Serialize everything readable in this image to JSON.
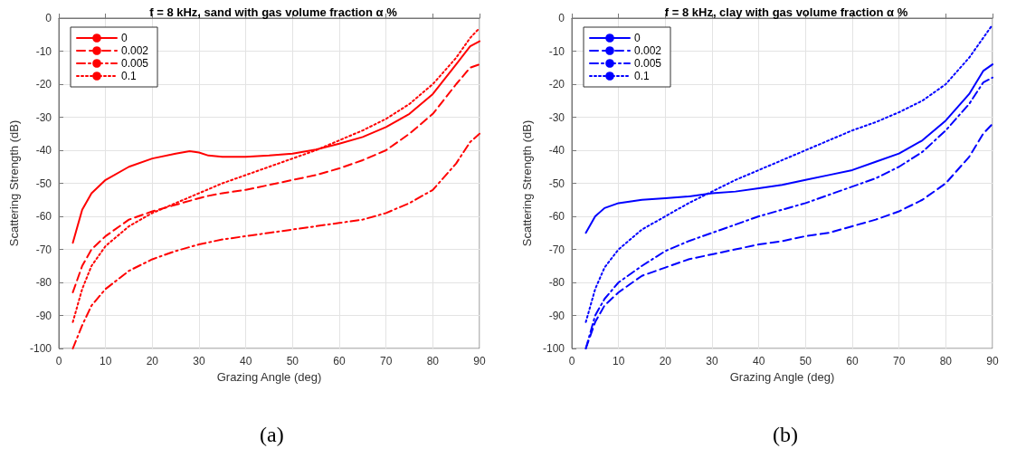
{
  "chart_data": [
    {
      "type": "line",
      "title": "f = 8 kHz, sand with gas volume fraction α %",
      "xlabel": "Grazing Angle (deg)",
      "ylabel": "Scattering Strength (dB)",
      "annotations": [
        "(a)"
      ],
      "x": [
        3,
        5,
        7,
        10,
        15,
        20,
        25,
        28,
        30,
        32,
        35,
        40,
        45,
        50,
        55,
        60,
        65,
        70,
        75,
        80,
        85,
        88,
        90
      ],
      "series": [
        {
          "name": "0",
          "color": "#ff0000",
          "line_style": "solid",
          "values": [
            -68,
            -58,
            -53,
            -49,
            -45,
            -42.5,
            -41,
            -40.3,
            -40.7,
            -41.6,
            -42,
            -42,
            -41.6,
            -41,
            -39.8,
            -38,
            -36,
            -33,
            -29,
            -23,
            -14,
            -8.5,
            -7
          ]
        },
        {
          "name": "0.002",
          "color": "#ff0000",
          "line_style": "dashed",
          "values": [
            -83,
            -75,
            -70,
            -66,
            -61,
            -58.5,
            -56.5,
            -55.3,
            -54.5,
            -53.8,
            -53,
            -52,
            -50.5,
            -49,
            -47.5,
            -45.5,
            -43,
            -40,
            -35,
            -29,
            -20,
            -15,
            -14
          ]
        },
        {
          "name": "0.005",
          "color": "#ff0000",
          "line_style": "dashdot",
          "values": [
            -100,
            -93,
            -87,
            -82,
            -76.5,
            -73,
            -70.5,
            -69.3,
            -68.5,
            -67.9,
            -67,
            -66,
            -65,
            -64,
            -63,
            -62,
            -61,
            -59,
            -56,
            -52,
            -44,
            -37.5,
            -35
          ]
        },
        {
          "name": "0.1",
          "color": "#ff0000",
          "line_style": "dotted",
          "values": [
            -92,
            -82,
            -75,
            -69,
            -63,
            -59,
            -56,
            -54.2,
            -53,
            -51.8,
            -50,
            -47.5,
            -45,
            -42.5,
            -40,
            -37,
            -34,
            -30.5,
            -26,
            -20,
            -12,
            -6,
            -3
          ]
        }
      ],
      "xlim": [
        0,
        90
      ],
      "xticks": [
        0,
        10,
        20,
        30,
        40,
        50,
        60,
        70,
        80,
        90
      ],
      "ylim": [
        -100,
        0
      ],
      "yticks": [
        -100,
        -90,
        -80,
        -70,
        -60,
        -50,
        -40,
        -30,
        -20,
        -10,
        0
      ],
      "grid": true,
      "legend": "top left",
      "marker": "none"
    },
    {
      "type": "line",
      "title": "f = 8 kHz, clay with gas volume fraction α %",
      "xlabel": "Grazing Angle (deg)",
      "ylabel": "Scattering Strength (dB)",
      "annotations": [
        "(b)"
      ],
      "x": [
        3,
        5,
        7,
        10,
        15,
        20,
        25,
        30,
        35,
        40,
        45,
        50,
        55,
        60,
        65,
        70,
        75,
        80,
        85,
        88,
        90
      ],
      "series": [
        {
          "name": "0",
          "color": "#0000ff",
          "line_style": "solid",
          "values": [
            -65,
            -60,
            -57.5,
            -56,
            -55,
            -54.5,
            -54,
            -53,
            -52.5,
            -51.5,
            -50.5,
            -49,
            -47.5,
            -46,
            -43.5,
            -41,
            -37,
            -31,
            -23,
            -16,
            -14
          ]
        },
        {
          "name": "0.002",
          "color": "#0000ff",
          "line_style": "dashed",
          "values": [
            -100,
            -92,
            -87,
            -83,
            -78,
            -75.5,
            -73,
            -71.5,
            -70,
            -68.5,
            -67.5,
            -66,
            -65,
            -63,
            -61,
            -58.5,
            -55,
            -50,
            -42,
            -35,
            -32
          ]
        },
        {
          "name": "0.005",
          "color": "#0000ff",
          "line_style": "dashdot",
          "values": [
            -100,
            -90,
            -85,
            -80,
            -75,
            -70.5,
            -67.5,
            -65,
            -62.5,
            -60,
            -58,
            -56,
            -53.5,
            -51,
            -48.5,
            -45,
            -40.5,
            -34,
            -26,
            -19.5,
            -18
          ]
        },
        {
          "name": "0.1",
          "color": "#0000ff",
          "line_style": "dotted",
          "values": [
            -92,
            -82,
            -75.5,
            -70,
            -64,
            -60,
            -56,
            -52.5,
            -49,
            -46,
            -43,
            -40,
            -37,
            -34,
            -31.5,
            -28.5,
            -25,
            -20,
            -12,
            -6,
            -2
          ]
        }
      ],
      "xlim": [
        0,
        90
      ],
      "xticks": [
        0,
        10,
        20,
        30,
        40,
        50,
        60,
        70,
        80,
        90
      ],
      "ylim": [
        -100,
        0
      ],
      "yticks": [
        -100,
        -90,
        -80,
        -70,
        -60,
        -50,
        -40,
        -30,
        -20,
        -10,
        0
      ],
      "grid": true,
      "legend": "top left",
      "marker": "none"
    }
  ]
}
